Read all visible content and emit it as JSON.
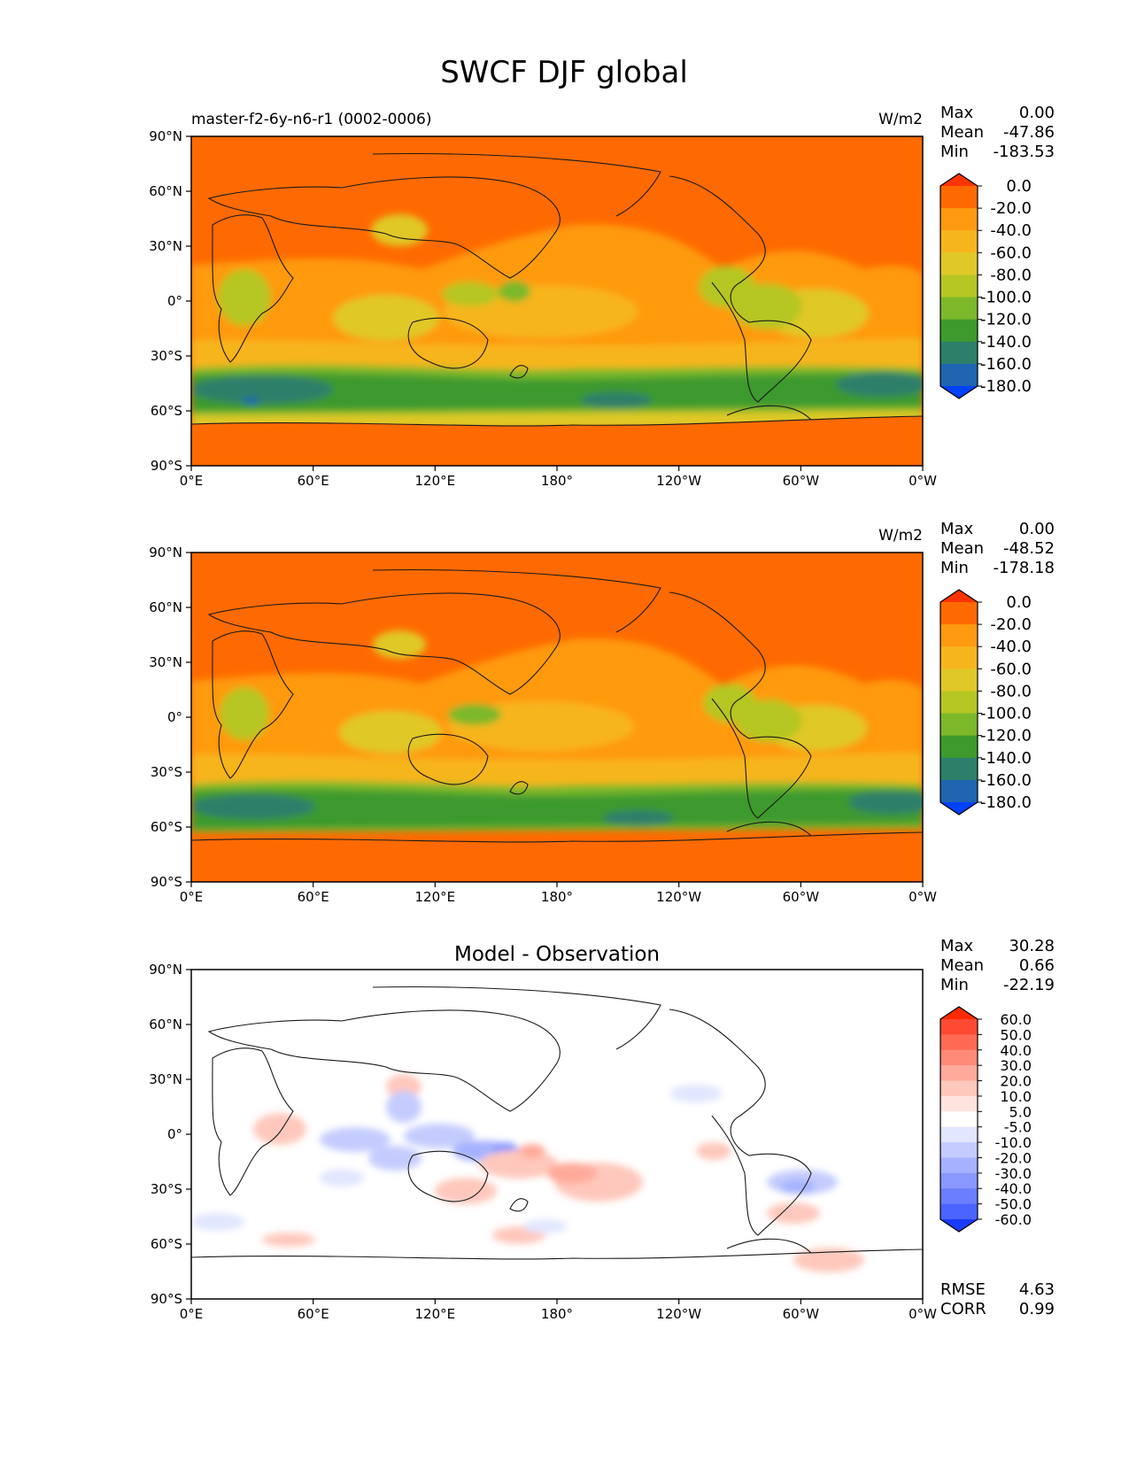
{
  "figure": {
    "title": "SWCF DJF global"
  },
  "chart_data": [
    {
      "type": "heatmap",
      "title": "master-f2-6y-n6-r1 (0002-0006)",
      "units": "W/m2",
      "stats": [
        {
          "label": "Max",
          "value": "0.00"
        },
        {
          "label": "Mean",
          "value": "-47.86"
        },
        {
          "label": "Min",
          "value": "-183.53"
        }
      ],
      "xticks": [
        "0°E",
        "60°E",
        "120°E",
        "180°",
        "120°W",
        "60°W",
        "0°W"
      ],
      "yticks": [
        "90°N",
        "60°N",
        "30°N",
        "0°",
        "30°S",
        "60°S",
        "90°S"
      ],
      "xlim": [
        0,
        360
      ],
      "ylim": [
        -90,
        90
      ],
      "colorbar": {
        "labels": [
          "0.0",
          "-20.0",
          "-40.0",
          "-60.0",
          "-80.0",
          "-100.0",
          "-120.0",
          "-140.0",
          "-160.0",
          "-180.0"
        ],
        "colors": [
          "#ff3300",
          "#ff6a00",
          "#ff9a10",
          "#f7b51d",
          "#e0c828",
          "#b6c623",
          "#7cb82a",
          "#3e9a2d",
          "#2e7f6a",
          "#1f65b0",
          "#0040ff"
        ]
      }
    },
    {
      "type": "heatmap",
      "title": "",
      "units": "W/m2",
      "stats": [
        {
          "label": "Max",
          "value": "0.00"
        },
        {
          "label": "Mean",
          "value": "-48.52"
        },
        {
          "label": "Min",
          "value": "-178.18"
        }
      ],
      "xticks": [
        "0°E",
        "60°E",
        "120°E",
        "180°",
        "120°W",
        "60°W",
        "0°W"
      ],
      "yticks": [
        "90°N",
        "60°N",
        "30°N",
        "0°",
        "30°S",
        "60°S",
        "90°S"
      ],
      "xlim": [
        0,
        360
      ],
      "ylim": [
        -90,
        90
      ],
      "colorbar": {
        "labels": [
          "0.0",
          "-20.0",
          "-40.0",
          "-60.0",
          "-80.0",
          "-100.0",
          "-120.0",
          "-140.0",
          "-160.0",
          "-180.0"
        ],
        "colors": [
          "#ff3300",
          "#ff6a00",
          "#ff9a10",
          "#f7b51d",
          "#e0c828",
          "#b6c623",
          "#7cb82a",
          "#3e9a2d",
          "#2e7f6a",
          "#1f65b0",
          "#0040ff"
        ]
      }
    },
    {
      "type": "heatmap",
      "title": "Model - Observation",
      "units": "",
      "stats": [
        {
          "label": "Max",
          "value": "30.28"
        },
        {
          "label": "Mean",
          "value": "0.66"
        },
        {
          "label": "Min",
          "value": "-22.19"
        }
      ],
      "footer": [
        {
          "label": "RMSE",
          "value": "4.63"
        },
        {
          "label": "CORR",
          "value": "0.99"
        }
      ],
      "xticks": [
        "0°E",
        "60°E",
        "120°E",
        "180°",
        "120°W",
        "60°W",
        "0°W"
      ],
      "yticks": [
        "90°N",
        "60°N",
        "30°N",
        "0°",
        "30°S",
        "60°S",
        "90°S"
      ],
      "xlim": [
        0,
        360
      ],
      "ylim": [
        -90,
        90
      ],
      "colorbar": {
        "labels": [
          "60.0",
          "50.0",
          "40.0",
          "30.0",
          "20.0",
          "10.0",
          "5.0",
          "-5.0",
          "-10.0",
          "-20.0",
          "-30.0",
          "-40.0",
          "-50.0",
          "-60.0"
        ],
        "colors": [
          "#ff2a00",
          "#ff4a32",
          "#ff6a55",
          "#ff8a78",
          "#ffaa9a",
          "#ffc8bc",
          "#ffe4de",
          "#ffffff",
          "#e2e6ff",
          "#c4ccff",
          "#a6b2ff",
          "#8898ff",
          "#6a7eff",
          "#4c64ff",
          "#1a3aff"
        ]
      }
    }
  ]
}
